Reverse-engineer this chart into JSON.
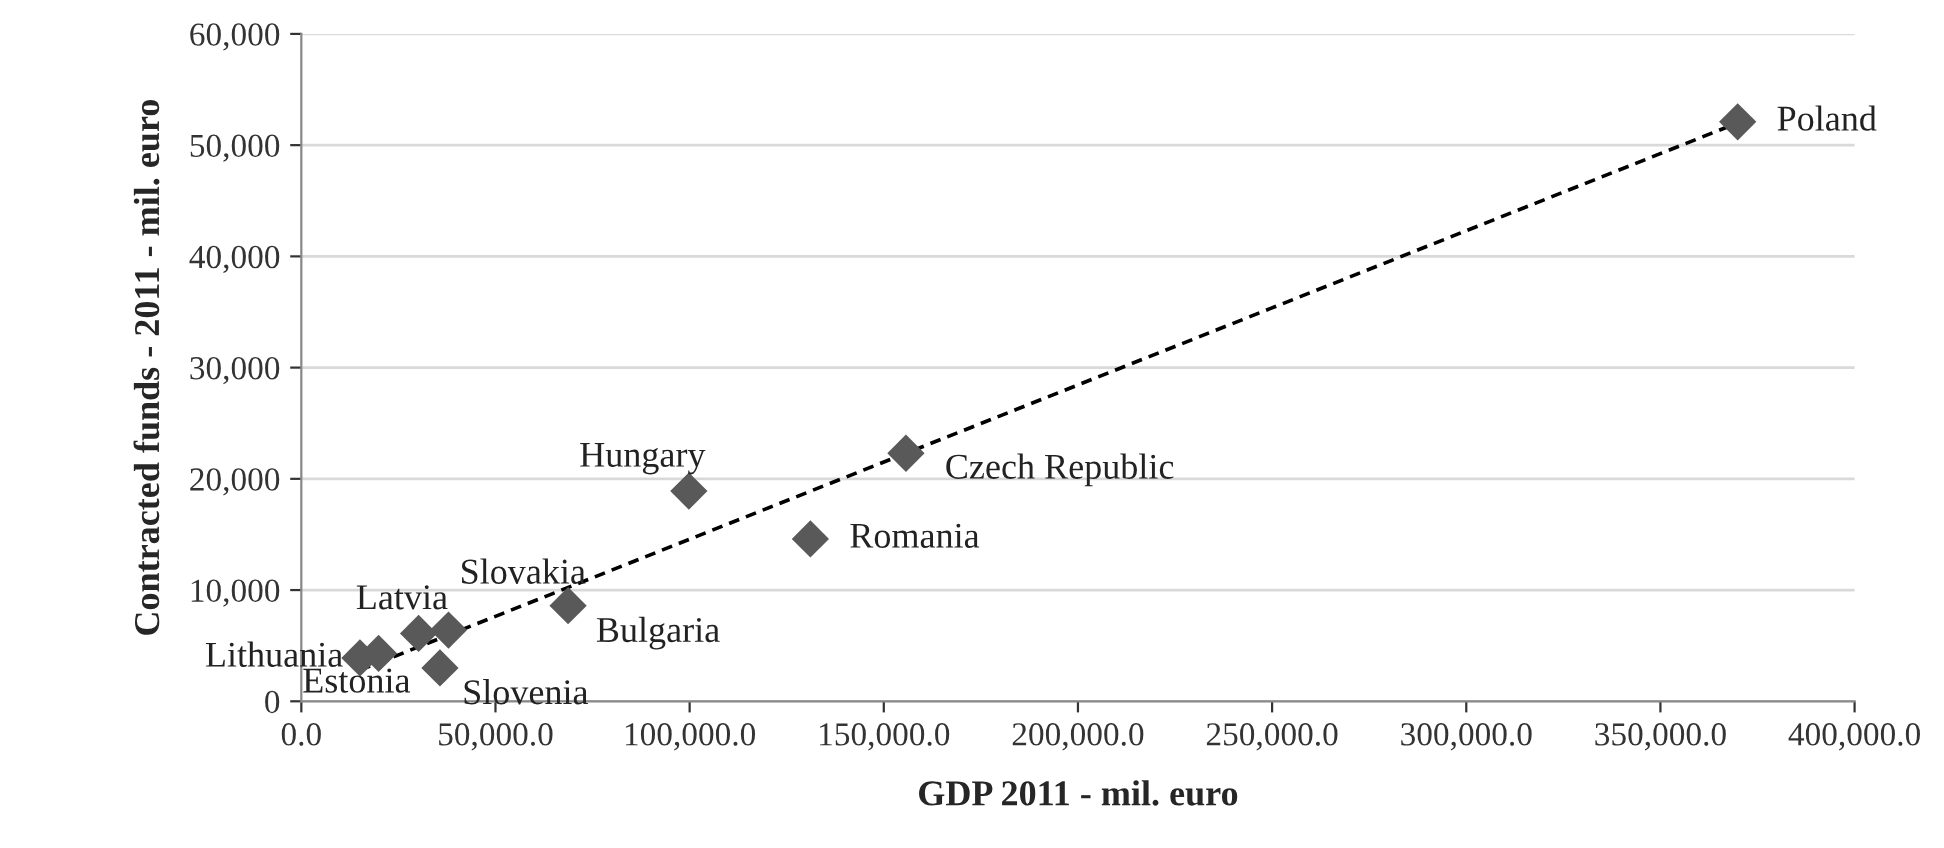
{
  "chart_data": {
    "type": "scatter",
    "xlabel": "GDP 2011 - mil. euro",
    "ylabel": "Contracted funds - 2011 - mil. euro",
    "x": [
      15100,
      19900,
      30200,
      37900,
      35700,
      68700,
      99800,
      131100,
      155700,
      369900
    ],
    "series": [
      {
        "color": "#595959",
        "marker": "diamond",
        "values": [
          3900,
          4300,
          6100,
          6400,
          3000,
          8600,
          18900,
          14600,
          22300,
          52100
        ]
      },
      {
        "type": "line",
        "color": "#000000",
        "line_style": "dashed",
        "marker": "none",
        "x": [
          15100,
          369900
        ],
        "values": [
          2800,
          52000
        ]
      }
    ],
    "annotations": [
      {
        "text": "Lithuania",
        "x": 15100,
        "y": 3900
      },
      {
        "text": "Estonia",
        "x": 19900,
        "y": 4300
      },
      {
        "text": "Latvia",
        "x": 30200,
        "y": 6100
      },
      {
        "text": "Slovakia",
        "x": 37900,
        "y": 6400
      },
      {
        "text": "Slovenia",
        "x": 35700,
        "y": 3000
      },
      {
        "text": "Bulgaria",
        "x": 68700,
        "y": 8600
      },
      {
        "text": "Hungary",
        "x": 99800,
        "y": 18900
      },
      {
        "text": "Romania",
        "x": 131100,
        "y": 14600
      },
      {
        "text": "Czech Republic",
        "x": 155700,
        "y": 22300
      },
      {
        "text": "Poland",
        "x": 369900,
        "y": 52100
      }
    ],
    "xlim": [
      0,
      400000
    ],
    "xticks": [
      {
        "value": 0,
        "label": "0.0"
      },
      {
        "value": 50000,
        "label": "50,000.0"
      },
      {
        "value": 100000,
        "label": "100,000.0"
      },
      {
        "value": 150000,
        "label": "150,000.0"
      },
      {
        "value": 200000,
        "label": "200,000.0"
      },
      {
        "value": 250000,
        "label": "250,000.0"
      },
      {
        "value": 300000,
        "label": "300,000.0"
      },
      {
        "value": 350000,
        "label": "350,000.0"
      },
      {
        "value": 400000,
        "label": "400,000.0"
      }
    ],
    "ylim": [
      0,
      60000
    ],
    "yticks": [
      0,
      {
        "value": 10000,
        "label": "10,000"
      },
      {
        "value": 20000,
        "label": "20,000"
      },
      {
        "value": 30000,
        "label": "30,000"
      },
      {
        "value": 40000,
        "label": "40,000"
      },
      {
        "value": 50000,
        "label": "50,000"
      },
      {
        "value": 60000,
        "label": "60,000"
      }
    ],
    "grid": "y",
    "legend": false
  }
}
